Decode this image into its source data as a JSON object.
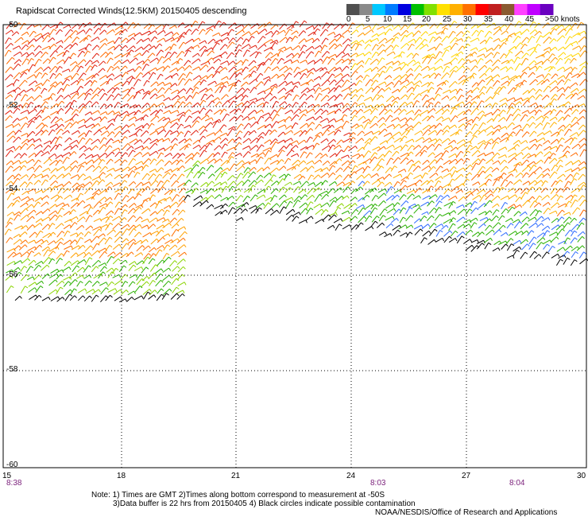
{
  "title": "Rapidscat Corrected Winds(12.5KM) 20150405 descending",
  "legend": {
    "labels": [
      "0",
      "5",
      "10",
      "15",
      "20",
      "25",
      "30",
      "35",
      "40",
      "45",
      ">50 knots"
    ],
    "colors": [
      "#505050",
      "#8a8a8a",
      "#00c8ff",
      "#007cff",
      "#0000e0",
      "#00c000",
      "#80e000",
      "#ffe000",
      "#ffb000",
      "#ff7000",
      "#ff0000",
      "#c02020",
      "#8a5a30",
      "#ff40ff",
      "#c000ff",
      "#6a00c0"
    ]
  },
  "axes": {
    "y_labels": [
      "-50",
      "-52",
      "-54",
      "-56",
      "-58",
      "-60"
    ],
    "x_labels": [
      "15",
      "18",
      "21",
      "24",
      "27",
      "30"
    ],
    "times": [
      "8:38",
      "8:03",
      "8:04"
    ]
  },
  "notes": {
    "line1": "Note: 1) Times are GMT 2)Times along bottom correspond to measurement at -50S",
    "line2": "3)Data buffer is 22 hrs from 20150405 4) Black circles indicate possible contamination",
    "credit": "NOAA/NESDIS/Office of Research and Applications"
  }
}
